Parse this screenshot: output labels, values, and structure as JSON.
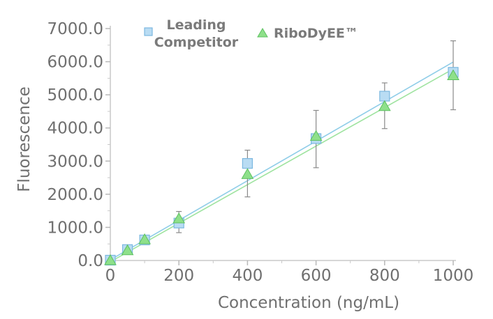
{
  "chart_data": {
    "type": "scatter",
    "xlabel": "Concentration (ng/mL)",
    "ylabel": "Fluorescence",
    "xlim": [
      0,
      1000
    ],
    "ylim": [
      0,
      7000
    ],
    "xticks": [
      "0",
      "200",
      "400",
      "600",
      "800",
      "1000"
    ],
    "yticks": [
      "0.0",
      "1000.0",
      "2000.0",
      "3000.0",
      "4000.0",
      "5000.0",
      "6000.0",
      "7000.0"
    ],
    "grid": false,
    "legend_position": "top",
    "series": [
      {
        "name": "Leading Competitor",
        "legend_lines": [
          "Leading",
          "Competitor"
        ],
        "marker": "square",
        "color": "#b9dcf3",
        "edge_color": "#7cb8e0",
        "line_color": "#8fcde8",
        "x": [
          0,
          50,
          100,
          200,
          400,
          600,
          800,
          1000
        ],
        "y": [
          10,
          330,
          620,
          1130,
          2930,
          3680,
          4960,
          5680
        ],
        "err_low": [
          0,
          0,
          0,
          0,
          0,
          0,
          0,
          0
        ],
        "err_high": [
          0,
          0,
          0,
          350,
          400,
          850,
          400,
          950
        ],
        "fit": [
          [
            0,
            20
          ],
          [
            1000,
            5990
          ]
        ]
      },
      {
        "name": "RiboDyEE™",
        "legend_lines": [
          "RiboDyEE™"
        ],
        "marker": "triangle",
        "color": "#8ee08a",
        "edge_color": "#5dc060",
        "line_color": "#9fe3a0",
        "x": [
          0,
          50,
          100,
          200,
          400,
          600,
          800,
          1000
        ],
        "y": [
          0,
          300,
          630,
          1260,
          2600,
          3750,
          4650,
          5580
        ],
        "err_low": [
          0,
          0,
          0,
          420,
          680,
          950,
          670,
          1030
        ],
        "err_high": [
          0,
          0,
          0,
          0,
          0,
          0,
          0,
          0
        ],
        "fit": [
          [
            0,
            -40
          ],
          [
            1000,
            5780
          ]
        ]
      }
    ]
  }
}
